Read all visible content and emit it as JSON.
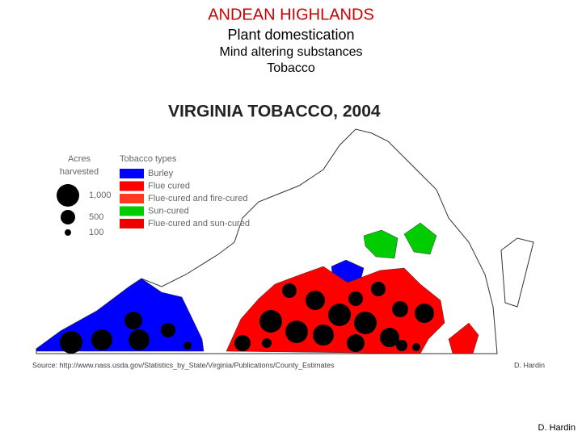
{
  "header": {
    "title": "ANDEAN HIGHLANDS",
    "subtitle": "Plant domestication",
    "lines": [
      "Mind altering substances",
      "Tobacco"
    ]
  },
  "map": {
    "title": "VIRGINIA TOBACCO, 2004",
    "size_legend": {
      "title_lines": [
        "Acres",
        "harvested"
      ],
      "labels": [
        "1,000",
        "500",
        "100"
      ]
    },
    "type_legend": {
      "title": "Tobacco types",
      "items": [
        {
          "label": "Burley",
          "color": "#0000ff"
        },
        {
          "label": "Flue cured",
          "color": "#ff0000"
        },
        {
          "label": "Flue-cured and fire-cured",
          "color": "#ff3b1f"
        },
        {
          "label": "Sun-cured",
          "color": "#00cc00"
        },
        {
          "label": "Flue-cured and sun-cured",
          "color": "#ee0000"
        }
      ]
    },
    "source": "Source: http://www.nass.usda.gov/Statistics_by_State/Virginia/Publications/County_Estimates",
    "credit": "D. Hardin"
  },
  "footer": {
    "credit": "D. Hardin"
  }
}
